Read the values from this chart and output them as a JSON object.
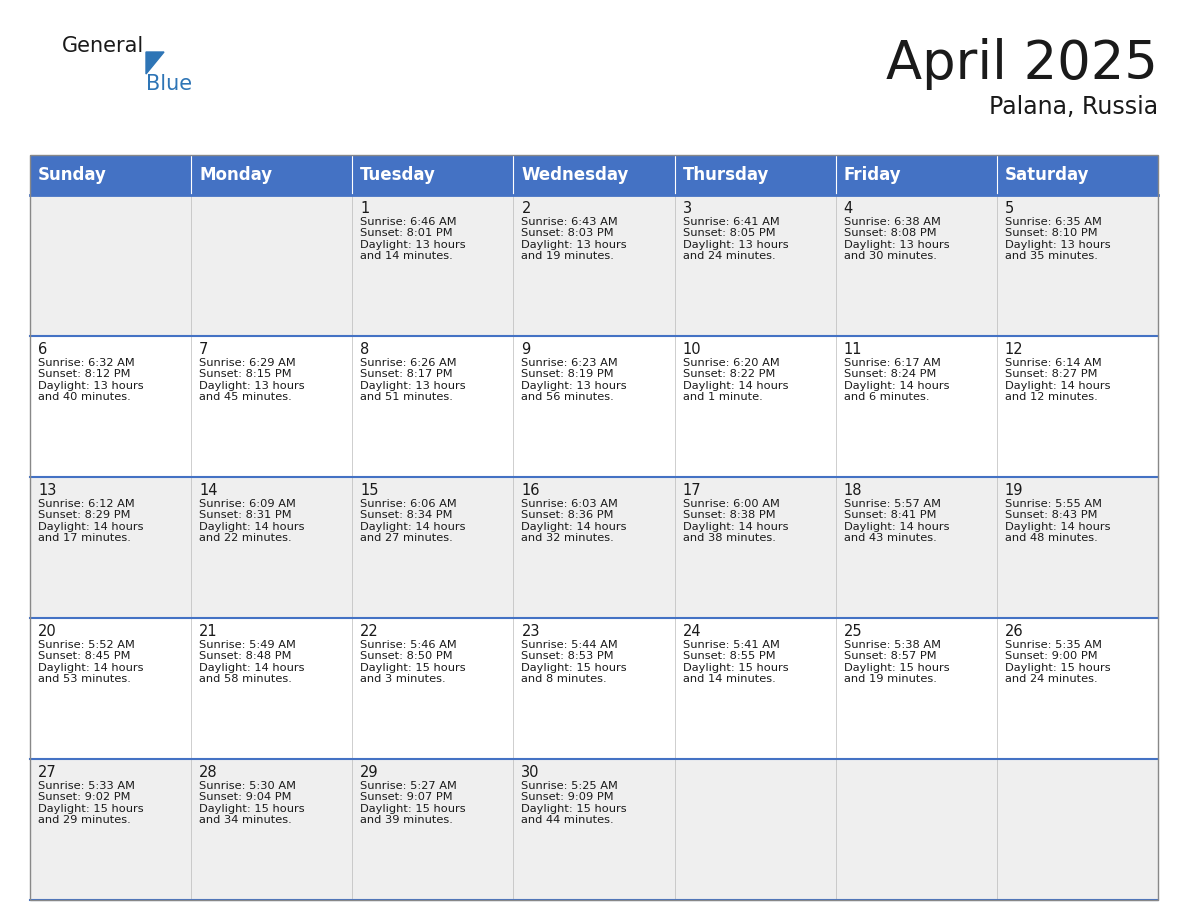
{
  "title": "April 2025",
  "subtitle": "Palana, Russia",
  "header_color": "#4472C4",
  "header_text_color": "#FFFFFF",
  "cell_bg_gray": "#EFEFEF",
  "cell_bg_white": "#FFFFFF",
  "day_headers": [
    "Sunday",
    "Monday",
    "Tuesday",
    "Wednesday",
    "Thursday",
    "Friday",
    "Saturday"
  ],
  "title_fontsize": 38,
  "subtitle_fontsize": 17,
  "header_fontsize": 12,
  "cell_day_fontsize": 10.5,
  "cell_text_fontsize": 8.2,
  "logo_general_fontsize": 15,
  "logo_blue_fontsize": 15,
  "days": [
    {
      "day": "",
      "row": 0,
      "col": 0,
      "lines": []
    },
    {
      "day": "",
      "row": 0,
      "col": 1,
      "lines": []
    },
    {
      "day": "1",
      "row": 0,
      "col": 2,
      "lines": [
        "Sunrise: 6:46 AM",
        "Sunset: 8:01 PM",
        "Daylight: 13 hours",
        "and 14 minutes."
      ]
    },
    {
      "day": "2",
      "row": 0,
      "col": 3,
      "lines": [
        "Sunrise: 6:43 AM",
        "Sunset: 8:03 PM",
        "Daylight: 13 hours",
        "and 19 minutes."
      ]
    },
    {
      "day": "3",
      "row": 0,
      "col": 4,
      "lines": [
        "Sunrise: 6:41 AM",
        "Sunset: 8:05 PM",
        "Daylight: 13 hours",
        "and 24 minutes."
      ]
    },
    {
      "day": "4",
      "row": 0,
      "col": 5,
      "lines": [
        "Sunrise: 6:38 AM",
        "Sunset: 8:08 PM",
        "Daylight: 13 hours",
        "and 30 minutes."
      ]
    },
    {
      "day": "5",
      "row": 0,
      "col": 6,
      "lines": [
        "Sunrise: 6:35 AM",
        "Sunset: 8:10 PM",
        "Daylight: 13 hours",
        "and 35 minutes."
      ]
    },
    {
      "day": "6",
      "row": 1,
      "col": 0,
      "lines": [
        "Sunrise: 6:32 AM",
        "Sunset: 8:12 PM",
        "Daylight: 13 hours",
        "and 40 minutes."
      ]
    },
    {
      "day": "7",
      "row": 1,
      "col": 1,
      "lines": [
        "Sunrise: 6:29 AM",
        "Sunset: 8:15 PM",
        "Daylight: 13 hours",
        "and 45 minutes."
      ]
    },
    {
      "day": "8",
      "row": 1,
      "col": 2,
      "lines": [
        "Sunrise: 6:26 AM",
        "Sunset: 8:17 PM",
        "Daylight: 13 hours",
        "and 51 minutes."
      ]
    },
    {
      "day": "9",
      "row": 1,
      "col": 3,
      "lines": [
        "Sunrise: 6:23 AM",
        "Sunset: 8:19 PM",
        "Daylight: 13 hours",
        "and 56 minutes."
      ]
    },
    {
      "day": "10",
      "row": 1,
      "col": 4,
      "lines": [
        "Sunrise: 6:20 AM",
        "Sunset: 8:22 PM",
        "Daylight: 14 hours",
        "and 1 minute."
      ]
    },
    {
      "day": "11",
      "row": 1,
      "col": 5,
      "lines": [
        "Sunrise: 6:17 AM",
        "Sunset: 8:24 PM",
        "Daylight: 14 hours",
        "and 6 minutes."
      ]
    },
    {
      "day": "12",
      "row": 1,
      "col": 6,
      "lines": [
        "Sunrise: 6:14 AM",
        "Sunset: 8:27 PM",
        "Daylight: 14 hours",
        "and 12 minutes."
      ]
    },
    {
      "day": "13",
      "row": 2,
      "col": 0,
      "lines": [
        "Sunrise: 6:12 AM",
        "Sunset: 8:29 PM",
        "Daylight: 14 hours",
        "and 17 minutes."
      ]
    },
    {
      "day": "14",
      "row": 2,
      "col": 1,
      "lines": [
        "Sunrise: 6:09 AM",
        "Sunset: 8:31 PM",
        "Daylight: 14 hours",
        "and 22 minutes."
      ]
    },
    {
      "day": "15",
      "row": 2,
      "col": 2,
      "lines": [
        "Sunrise: 6:06 AM",
        "Sunset: 8:34 PM",
        "Daylight: 14 hours",
        "and 27 minutes."
      ]
    },
    {
      "day": "16",
      "row": 2,
      "col": 3,
      "lines": [
        "Sunrise: 6:03 AM",
        "Sunset: 8:36 PM",
        "Daylight: 14 hours",
        "and 32 minutes."
      ]
    },
    {
      "day": "17",
      "row": 2,
      "col": 4,
      "lines": [
        "Sunrise: 6:00 AM",
        "Sunset: 8:38 PM",
        "Daylight: 14 hours",
        "and 38 minutes."
      ]
    },
    {
      "day": "18",
      "row": 2,
      "col": 5,
      "lines": [
        "Sunrise: 5:57 AM",
        "Sunset: 8:41 PM",
        "Daylight: 14 hours",
        "and 43 minutes."
      ]
    },
    {
      "day": "19",
      "row": 2,
      "col": 6,
      "lines": [
        "Sunrise: 5:55 AM",
        "Sunset: 8:43 PM",
        "Daylight: 14 hours",
        "and 48 minutes."
      ]
    },
    {
      "day": "20",
      "row": 3,
      "col": 0,
      "lines": [
        "Sunrise: 5:52 AM",
        "Sunset: 8:45 PM",
        "Daylight: 14 hours",
        "and 53 minutes."
      ]
    },
    {
      "day": "21",
      "row": 3,
      "col": 1,
      "lines": [
        "Sunrise: 5:49 AM",
        "Sunset: 8:48 PM",
        "Daylight: 14 hours",
        "and 58 minutes."
      ]
    },
    {
      "day": "22",
      "row": 3,
      "col": 2,
      "lines": [
        "Sunrise: 5:46 AM",
        "Sunset: 8:50 PM",
        "Daylight: 15 hours",
        "and 3 minutes."
      ]
    },
    {
      "day": "23",
      "row": 3,
      "col": 3,
      "lines": [
        "Sunrise: 5:44 AM",
        "Sunset: 8:53 PM",
        "Daylight: 15 hours",
        "and 8 minutes."
      ]
    },
    {
      "day": "24",
      "row": 3,
      "col": 4,
      "lines": [
        "Sunrise: 5:41 AM",
        "Sunset: 8:55 PM",
        "Daylight: 15 hours",
        "and 14 minutes."
      ]
    },
    {
      "day": "25",
      "row": 3,
      "col": 5,
      "lines": [
        "Sunrise: 5:38 AM",
        "Sunset: 8:57 PM",
        "Daylight: 15 hours",
        "and 19 minutes."
      ]
    },
    {
      "day": "26",
      "row": 3,
      "col": 6,
      "lines": [
        "Sunrise: 5:35 AM",
        "Sunset: 9:00 PM",
        "Daylight: 15 hours",
        "and 24 minutes."
      ]
    },
    {
      "day": "27",
      "row": 4,
      "col": 0,
      "lines": [
        "Sunrise: 5:33 AM",
        "Sunset: 9:02 PM",
        "Daylight: 15 hours",
        "and 29 minutes."
      ]
    },
    {
      "day": "28",
      "row": 4,
      "col": 1,
      "lines": [
        "Sunrise: 5:30 AM",
        "Sunset: 9:04 PM",
        "Daylight: 15 hours",
        "and 34 minutes."
      ]
    },
    {
      "day": "29",
      "row": 4,
      "col": 2,
      "lines": [
        "Sunrise: 5:27 AM",
        "Sunset: 9:07 PM",
        "Daylight: 15 hours",
        "and 39 minutes."
      ]
    },
    {
      "day": "30",
      "row": 4,
      "col": 3,
      "lines": [
        "Sunrise: 5:25 AM",
        "Sunset: 9:09 PM",
        "Daylight: 15 hours",
        "and 44 minutes."
      ]
    },
    {
      "day": "",
      "row": 4,
      "col": 4,
      "lines": []
    },
    {
      "day": "",
      "row": 4,
      "col": 5,
      "lines": []
    },
    {
      "day": "",
      "row": 4,
      "col": 6,
      "lines": []
    }
  ]
}
